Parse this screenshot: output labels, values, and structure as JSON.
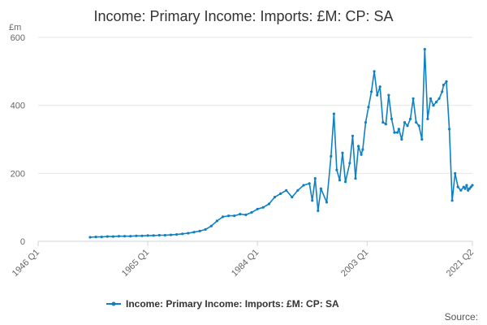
{
  "chart_data": {
    "type": "line",
    "title": "Income: Primary Income: Imports: £M: CP: SA",
    "ylabel": "£m",
    "xlabel": "",
    "ylim": [
      0,
      600
    ],
    "xlim": [
      "1946 Q1",
      "2021 Q2"
    ],
    "y_ticks": [
      0,
      200,
      400,
      600
    ],
    "x_ticks": [
      "1946 Q1",
      "1965 Q1",
      "1984 Q1",
      "2003 Q1",
      "2021 Q2"
    ],
    "grid": "horizontal",
    "legend_position": "bottom",
    "color": "#0f81c3",
    "series": [
      {
        "name": "Income: Primary Income: Imports: £M: CP: SA",
        "x": [
          "1955 Q1",
          "1956 Q1",
          "1957 Q1",
          "1958 Q1",
          "1959 Q1",
          "1960 Q1",
          "1961 Q1",
          "1962 Q1",
          "1963 Q1",
          "1964 Q1",
          "1965 Q1",
          "1966 Q1",
          "1967 Q1",
          "1968 Q1",
          "1969 Q1",
          "1970 Q1",
          "1971 Q1",
          "1972 Q1",
          "1973 Q1",
          "1974 Q1",
          "1975 Q1",
          "1976 Q1",
          "1977 Q1",
          "1978 Q1",
          "1979 Q1",
          "1980 Q1",
          "1981 Q1",
          "1982 Q1",
          "1983 Q1",
          "1984 Q1",
          "1985 Q1",
          "1986 Q1",
          "1987 Q1",
          "1988 Q1",
          "1989 Q1",
          "1990 Q1",
          "1991 Q1",
          "1992 Q1",
          "1993 Q1",
          "1993 Q3",
          "1994 Q1",
          "1994 Q3",
          "1995 Q1",
          "1996 Q1",
          "1996 Q4",
          "1997 Q2",
          "1997 Q4",
          "1998 Q2",
          "1998 Q4",
          "1999 Q2",
          "2000 Q1",
          "2000 Q3",
          "2001 Q1",
          "2001 Q3",
          "2002 Q1",
          "2002 Q2",
          "2002 Q4",
          "2003 Q2",
          "2003 Q4",
          "2004 Q2",
          "2004 Q4",
          "2005 Q2",
          "2005 Q4",
          "2006 Q2",
          "2006 Q4",
          "2007 Q2",
          "2007 Q4",
          "2008 Q2",
          "2008 Q3",
          "2009 Q1",
          "2009 Q3",
          "2010 Q1",
          "2010 Q3",
          "2011 Q1",
          "2011 Q3",
          "2012 Q1",
          "2012 Q3",
          "2013 Q1",
          "2013 Q3",
          "2014 Q1",
          "2014 Q3",
          "2015 Q1",
          "2015 Q3",
          "2016 Q1",
          "2016 Q2",
          "2016 Q4",
          "2017 Q2",
          "2017 Q4",
          "2018 Q2",
          "2018 Q4",
          "2019 Q2",
          "2019 Q4",
          "2020 Q1",
          "2020 Q2",
          "2020 Q3",
          "2020 Q4",
          "2021 Q1",
          "2021 Q2"
        ],
        "values": [
          12,
          13,
          13,
          14,
          14,
          15,
          15,
          15,
          16,
          16,
          17,
          17,
          18,
          18,
          19,
          20,
          22,
          24,
          27,
          30,
          35,
          45,
          60,
          72,
          75,
          75,
          80,
          78,
          85,
          95,
          100,
          110,
          130,
          140,
          150,
          130,
          150,
          165,
          170,
          120,
          185,
          90,
          155,
          115,
          250,
          375,
          210,
          180,
          260,
          175,
          230,
          310,
          185,
          280,
          255,
          270,
          350,
          395,
          440,
          500,
          430,
          455,
          350,
          345,
          430,
          360,
          320,
          320,
          330,
          300,
          350,
          340,
          360,
          420,
          350,
          340,
          300,
          565,
          360,
          420,
          400,
          410,
          420,
          440,
          460,
          470,
          330,
          120,
          200,
          160,
          150,
          160,
          155,
          165,
          150,
          155,
          160,
          165
        ]
      }
    ]
  },
  "legend": {
    "label": "Income: Primary Income: Imports: £M: CP: SA"
  },
  "footer": {
    "source_label": "Source:"
  }
}
